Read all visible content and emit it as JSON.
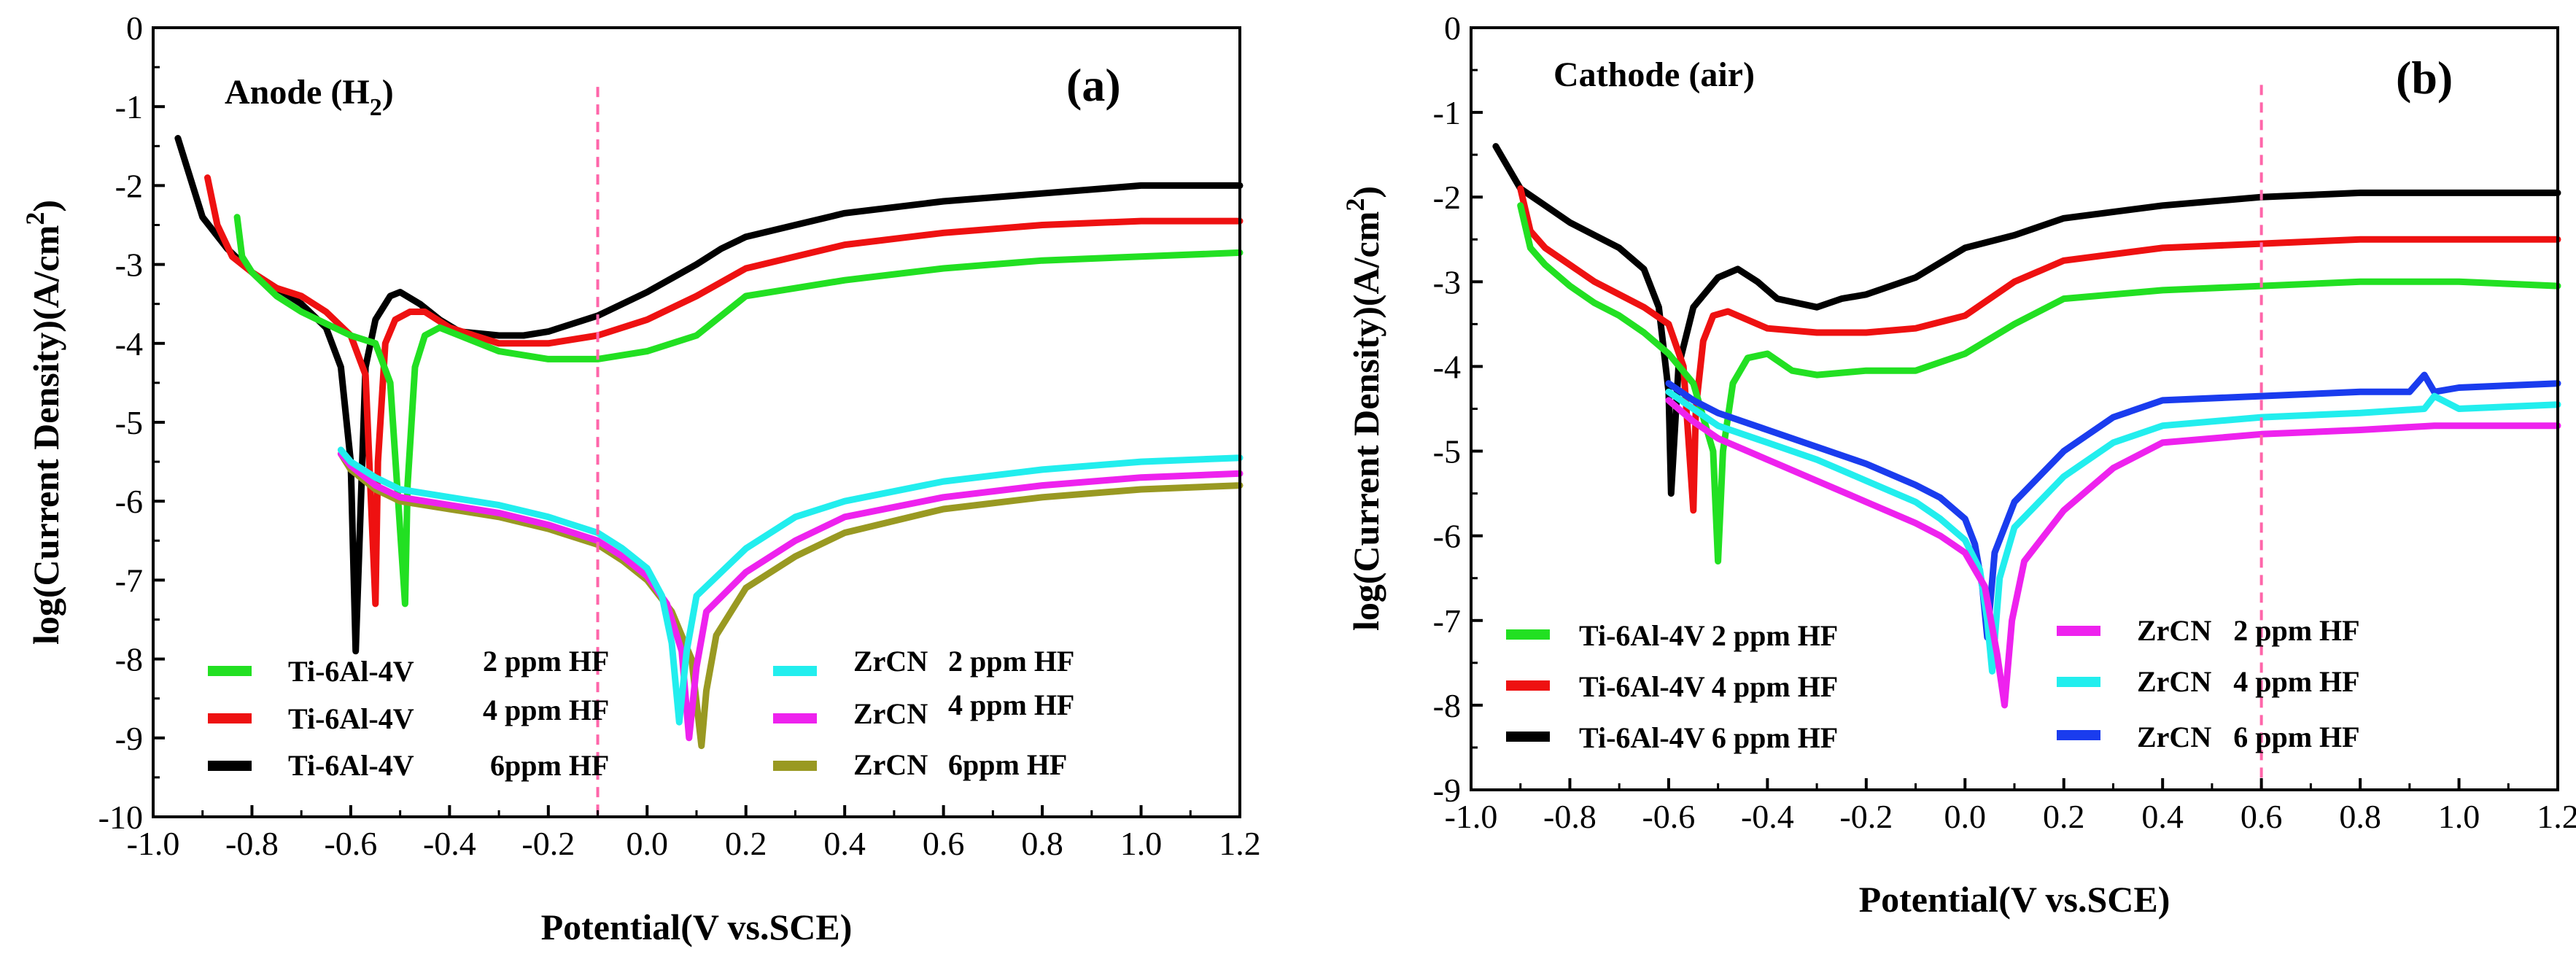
{
  "chart_data": [
    {
      "type": "line",
      "panel_label": "(a)",
      "title": "Anode (H",
      "title_sub": "2",
      "title_close": ")",
      "xlabel": "Potential(V vs.SCE)",
      "ylabel": "log(Current Density)(A/cm",
      "ylabel_sup": "2",
      "ylabel_close": ")",
      "xlim": [
        -1.0,
        1.2
      ],
      "ylim": [
        -10,
        0
      ],
      "xticks": [
        "-1.0",
        "-0.8",
        "-0.6",
        "-0.4",
        "-0.2",
        "0.0",
        "0.2",
        "0.4",
        "0.6",
        "0.8",
        "1.0",
        "1.2"
      ],
      "yticks": [
        "0",
        "-1",
        "-2",
        "-3",
        "-4",
        "-5",
        "-6",
        "-7",
        "-8",
        "-9",
        "-10"
      ],
      "vline_x": -0.1,
      "legend": [
        {
          "label": "Ti-6Al-4V",
          "hf": "2 ppm HF",
          "color": "#22e022"
        },
        {
          "label": "Ti-6Al-4V",
          "hf": "4 ppm HF",
          "color": "#ee1111"
        },
        {
          "label": "Ti-6Al-4V",
          "hf": "6ppm HF",
          "color": "#000000"
        },
        {
          "label": "ZrCN",
          "hf": "2 ppm HF",
          "color": "#22eeee"
        },
        {
          "label": "ZrCN",
          "hf": "4 ppm HF",
          "color": "#ee22ee"
        },
        {
          "label": "ZrCN",
          "hf": "6ppm HF",
          "color": "#999922"
        }
      ],
      "series": [
        {
          "name": "Ti-6Al-4V 6ppm HF",
          "color": "#000000",
          "x": [
            -0.95,
            -0.9,
            -0.85,
            -0.8,
            -0.75,
            -0.7,
            -0.65,
            -0.62,
            -0.6,
            -0.59,
            -0.57,
            -0.55,
            -0.52,
            -0.5,
            -0.46,
            -0.42,
            -0.38,
            -0.3,
            -0.25,
            -0.2,
            -0.1,
            0.0,
            0.1,
            0.15,
            0.2,
            0.3,
            0.4,
            0.6,
            0.8,
            1.0,
            1.2
          ],
          "y": [
            -1.4,
            -2.4,
            -2.8,
            -3.1,
            -3.3,
            -3.5,
            -3.8,
            -4.3,
            -5.5,
            -7.9,
            -4.3,
            -3.7,
            -3.4,
            -3.35,
            -3.5,
            -3.7,
            -3.85,
            -3.9,
            -3.9,
            -3.85,
            -3.65,
            -3.35,
            -3.0,
            -2.8,
            -2.65,
            -2.5,
            -2.35,
            -2.2,
            -2.1,
            -2.0,
            -2.0
          ]
        },
        {
          "name": "Ti-6Al-4V 4 ppm HF",
          "color": "#ee1111",
          "x": [
            -0.89,
            -0.87,
            -0.84,
            -0.8,
            -0.75,
            -0.7,
            -0.65,
            -0.6,
            -0.57,
            -0.55,
            -0.545,
            -0.53,
            -0.51,
            -0.48,
            -0.45,
            -0.4,
            -0.35,
            -0.3,
            -0.2,
            -0.1,
            0.0,
            0.1,
            0.2,
            0.3,
            0.4,
            0.6,
            0.8,
            1.0,
            1.2
          ],
          "y": [
            -1.9,
            -2.5,
            -2.9,
            -3.1,
            -3.3,
            -3.4,
            -3.6,
            -3.9,
            -4.4,
            -7.3,
            -5.5,
            -4.0,
            -3.7,
            -3.6,
            -3.6,
            -3.8,
            -3.9,
            -4.0,
            -4.0,
            -3.9,
            -3.7,
            -3.4,
            -3.05,
            -2.9,
            -2.75,
            -2.6,
            -2.5,
            -2.45,
            -2.45
          ]
        },
        {
          "name": "Ti-6Al-4V 2 ppm HF",
          "color": "#22e022",
          "x": [
            -0.83,
            -0.82,
            -0.8,
            -0.75,
            -0.7,
            -0.65,
            -0.6,
            -0.55,
            -0.52,
            -0.49,
            -0.485,
            -0.47,
            -0.45,
            -0.42,
            -0.38,
            -0.3,
            -0.2,
            -0.1,
            0.0,
            0.1,
            0.2,
            0.3,
            0.4,
            0.6,
            0.8,
            1.0,
            1.2
          ],
          "y": [
            -2.4,
            -2.9,
            -3.1,
            -3.4,
            -3.6,
            -3.75,
            -3.9,
            -4.0,
            -4.5,
            -7.3,
            -5.8,
            -4.3,
            -3.9,
            -3.8,
            -3.9,
            -4.1,
            -4.2,
            -4.2,
            -4.1,
            -3.9,
            -3.4,
            -3.3,
            -3.2,
            -3.05,
            -2.95,
            -2.9,
            -2.85
          ]
        },
        {
          "name": "ZrCN 6ppm HF",
          "color": "#999922",
          "x": [
            -0.62,
            -0.6,
            -0.55,
            -0.5,
            -0.4,
            -0.3,
            -0.2,
            -0.1,
            -0.05,
            0.0,
            0.05,
            0.09,
            0.11,
            0.12,
            0.14,
            0.2,
            0.3,
            0.4,
            0.6,
            0.8,
            1.0,
            1.2
          ],
          "y": [
            -5.4,
            -5.6,
            -5.85,
            -6.0,
            -6.1,
            -6.2,
            -6.35,
            -6.55,
            -6.75,
            -7.0,
            -7.4,
            -8.0,
            -9.1,
            -8.4,
            -7.7,
            -7.1,
            -6.7,
            -6.4,
            -6.1,
            -5.95,
            -5.85,
            -5.8
          ]
        },
        {
          "name": "ZrCN 4 ppm HF",
          "color": "#ee22ee",
          "x": [
            -0.62,
            -0.6,
            -0.55,
            -0.5,
            -0.4,
            -0.3,
            -0.2,
            -0.1,
            -0.05,
            0.0,
            0.04,
            0.07,
            0.085,
            0.1,
            0.12,
            0.2,
            0.3,
            0.4,
            0.6,
            0.8,
            1.0,
            1.2
          ],
          "y": [
            -5.4,
            -5.55,
            -5.8,
            -5.95,
            -6.05,
            -6.15,
            -6.3,
            -6.5,
            -6.7,
            -6.95,
            -7.3,
            -7.9,
            -9.0,
            -8.1,
            -7.4,
            -6.9,
            -6.5,
            -6.2,
            -5.95,
            -5.8,
            -5.7,
            -5.65
          ]
        },
        {
          "name": "ZrCN 2 ppm HF",
          "color": "#22eeee",
          "x": [
            -0.62,
            -0.6,
            -0.55,
            -0.5,
            -0.4,
            -0.3,
            -0.2,
            -0.1,
            -0.05,
            0.0,
            0.03,
            0.05,
            0.065,
            0.08,
            0.1,
            0.2,
            0.3,
            0.4,
            0.6,
            0.8,
            1.0,
            1.2
          ],
          "y": [
            -5.35,
            -5.5,
            -5.7,
            -5.85,
            -5.95,
            -6.05,
            -6.2,
            -6.4,
            -6.6,
            -6.85,
            -7.2,
            -7.8,
            -8.8,
            -7.9,
            -7.2,
            -6.6,
            -6.2,
            -6.0,
            -5.75,
            -5.6,
            -5.5,
            -5.45
          ]
        }
      ]
    },
    {
      "type": "line",
      "panel_label": "(b)",
      "title": "Cathode (air)",
      "xlabel": "Potential(V vs.SCE)",
      "ylabel": "log(Current Density)(A/cm",
      "ylabel_sup": "2",
      "ylabel_close": ")",
      "xlim": [
        -1.0,
        1.2
      ],
      "ylim": [
        -9,
        0
      ],
      "xticks": [
        "-1.0",
        "-0.8",
        "-0.6",
        "-0.4",
        "-0.2",
        "0.0",
        "0.2",
        "0.4",
        "0.6",
        "0.8",
        "1.0",
        "1.2"
      ],
      "yticks": [
        "0",
        "-1",
        "-2",
        "-3",
        "-4",
        "-5",
        "-6",
        "-7",
        "-8",
        "-9"
      ],
      "vline_x": 0.6,
      "legend": [
        {
          "label": "Ti-6Al-4V 2 ppm HF",
          "color": "#22e022"
        },
        {
          "label": "Ti-6Al-4V 4 ppm HF",
          "color": "#ee1111"
        },
        {
          "label": "Ti-6Al-4V 6 ppm HF",
          "color": "#000000"
        },
        {
          "label": "ZrCN   2 ppm HF",
          "color": "#ee22ee"
        },
        {
          "label": "ZrCN   4 ppm HF",
          "color": "#22eeee"
        },
        {
          "label": "ZrCN   6 ppm HF",
          "color": "#1a3cee"
        }
      ],
      "series": [
        {
          "name": "Ti-6Al-4V 6 ppm HF",
          "color": "#000000",
          "x": [
            -0.95,
            -0.9,
            -0.85,
            -0.8,
            -0.75,
            -0.7,
            -0.65,
            -0.62,
            -0.6,
            -0.595,
            -0.58,
            -0.55,
            -0.5,
            -0.46,
            -0.42,
            -0.38,
            -0.3,
            -0.25,
            -0.2,
            -0.1,
            0.0,
            0.1,
            0.2,
            0.4,
            0.6,
            0.8,
            1.0,
            1.2
          ],
          "y": [
            -1.4,
            -1.9,
            -2.1,
            -2.3,
            -2.45,
            -2.6,
            -2.85,
            -3.3,
            -4.3,
            -5.5,
            -4.0,
            -3.3,
            -2.95,
            -2.85,
            -3.0,
            -3.2,
            -3.3,
            -3.2,
            -3.15,
            -2.95,
            -2.6,
            -2.45,
            -2.25,
            -2.1,
            -2.0,
            -1.95,
            -1.95,
            -1.95
          ]
        },
        {
          "name": "Ti-6Al-4V 4 ppm HF",
          "color": "#ee1111",
          "x": [
            -0.9,
            -0.88,
            -0.85,
            -0.8,
            -0.75,
            -0.7,
            -0.65,
            -0.6,
            -0.57,
            -0.55,
            -0.545,
            -0.53,
            -0.51,
            -0.48,
            -0.44,
            -0.4,
            -0.3,
            -0.2,
            -0.1,
            0.0,
            0.1,
            0.2,
            0.4,
            0.6,
            0.8,
            1.0,
            1.2
          ],
          "y": [
            -1.9,
            -2.4,
            -2.6,
            -2.8,
            -3.0,
            -3.15,
            -3.3,
            -3.5,
            -4.0,
            -5.7,
            -4.5,
            -3.7,
            -3.4,
            -3.35,
            -3.45,
            -3.55,
            -3.6,
            -3.6,
            -3.55,
            -3.4,
            -3.0,
            -2.75,
            -2.6,
            -2.55,
            -2.5,
            -2.5,
            -2.5
          ]
        },
        {
          "name": "Ti-6Al-4V 2 ppm HF",
          "color": "#22e022",
          "x": [
            -0.9,
            -0.88,
            -0.85,
            -0.8,
            -0.75,
            -0.7,
            -0.65,
            -0.6,
            -0.55,
            -0.51,
            -0.5,
            -0.49,
            -0.47,
            -0.44,
            -0.4,
            -0.35,
            -0.3,
            -0.2,
            -0.1,
            0.0,
            0.1,
            0.2,
            0.4,
            0.6,
            0.8,
            1.0,
            1.2
          ],
          "y": [
            -2.1,
            -2.6,
            -2.8,
            -3.05,
            -3.25,
            -3.4,
            -3.6,
            -3.85,
            -4.2,
            -5.0,
            -6.3,
            -5.0,
            -4.2,
            -3.9,
            -3.85,
            -4.05,
            -4.1,
            -4.05,
            -4.05,
            -3.85,
            -3.5,
            -3.2,
            -3.1,
            -3.05,
            -3.0,
            -3.0,
            -3.05
          ]
        },
        {
          "name": "ZrCN 6 ppm HF",
          "color": "#1a3cee",
          "x": [
            -0.6,
            -0.55,
            -0.5,
            -0.4,
            -0.3,
            -0.2,
            -0.1,
            -0.05,
            0.0,
            0.02,
            0.035,
            0.045,
            0.06,
            0.1,
            0.2,
            0.3,
            0.4,
            0.6,
            0.8,
            0.9,
            0.93,
            0.95,
            1.0,
            1.2
          ],
          "y": [
            -4.2,
            -4.4,
            -4.55,
            -4.75,
            -4.95,
            -5.15,
            -5.4,
            -5.55,
            -5.8,
            -6.1,
            -6.6,
            -7.2,
            -6.2,
            -5.6,
            -5.0,
            -4.6,
            -4.4,
            -4.35,
            -4.3,
            -4.3,
            -4.1,
            -4.3,
            -4.25,
            -4.2
          ]
        },
        {
          "name": "ZrCN 4 ppm HF",
          "color": "#22eeee",
          "x": [
            -0.6,
            -0.55,
            -0.5,
            -0.4,
            -0.3,
            -0.2,
            -0.1,
            -0.05,
            0.0,
            0.03,
            0.045,
            0.055,
            0.07,
            0.1,
            0.2,
            0.3,
            0.4,
            0.6,
            0.8,
            0.93,
            0.95,
            1.0,
            1.2
          ],
          "y": [
            -4.3,
            -4.5,
            -4.7,
            -4.9,
            -5.1,
            -5.35,
            -5.6,
            -5.8,
            -6.05,
            -6.4,
            -7.0,
            -7.6,
            -6.5,
            -5.9,
            -5.3,
            -4.9,
            -4.7,
            -4.6,
            -4.55,
            -4.5,
            -4.35,
            -4.5,
            -4.45
          ]
        },
        {
          "name": "ZrCN 2 ppm HF",
          "color": "#ee22ee",
          "x": [
            -0.6,
            -0.55,
            -0.5,
            -0.4,
            -0.3,
            -0.2,
            -0.1,
            -0.05,
            0.0,
            0.04,
            0.065,
            0.08,
            0.095,
            0.12,
            0.2,
            0.3,
            0.4,
            0.6,
            0.8,
            0.95,
            1.0,
            1.2
          ],
          "y": [
            -4.4,
            -4.65,
            -4.85,
            -5.1,
            -5.35,
            -5.6,
            -5.85,
            -6.0,
            -6.2,
            -6.6,
            -7.4,
            -8.0,
            -7.0,
            -6.3,
            -5.7,
            -5.2,
            -4.9,
            -4.8,
            -4.75,
            -4.7,
            -4.7,
            -4.7
          ]
        }
      ]
    }
  ]
}
